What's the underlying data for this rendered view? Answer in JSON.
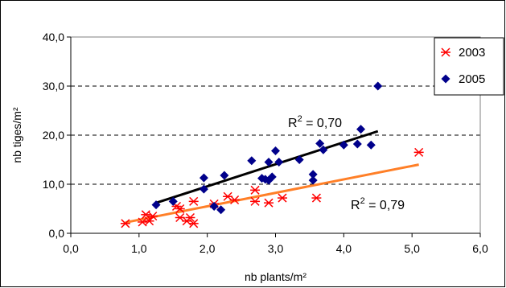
{
  "chart_data": {
    "type": "scatter",
    "xlabel": "nb plants/m²",
    "ylabel": "nb tiges/m²",
    "xlim": [
      0,
      6
    ],
    "ylim": [
      0,
      40
    ],
    "x_ticks": [
      "0,0",
      "1,0",
      "2,0",
      "3,0",
      "4,0",
      "5,0",
      "6,0"
    ],
    "y_ticks": [
      "0,0",
      "10,0",
      "20,0",
      "30,0",
      "40,0"
    ],
    "grid": "horizontal dashed",
    "legend_position": "top-right",
    "series": [
      {
        "name": "2003",
        "marker": "asterisk",
        "color": "#ff0000",
        "points": [
          [
            0.8,
            2.0
          ],
          [
            1.05,
            2.3
          ],
          [
            1.1,
            3.8
          ],
          [
            1.15,
            2.5
          ],
          [
            1.2,
            3.5
          ],
          [
            1.55,
            5.5
          ],
          [
            1.6,
            3.2
          ],
          [
            1.6,
            5.0
          ],
          [
            1.7,
            2.5
          ],
          [
            1.75,
            3.2
          ],
          [
            1.8,
            2.0
          ],
          [
            1.8,
            6.5
          ],
          [
            2.1,
            6.0
          ],
          [
            2.3,
            7.5
          ],
          [
            2.4,
            6.8
          ],
          [
            2.7,
            6.5
          ],
          [
            2.7,
            8.8
          ],
          [
            2.9,
            6.2
          ],
          [
            3.1,
            7.2
          ],
          [
            3.6,
            7.2
          ],
          [
            5.1,
            16.5
          ]
        ],
        "trendline": {
          "color": "#ff7f27",
          "x": [
            0.8,
            5.1
          ],
          "y": [
            2.2,
            14.0
          ]
        }
      },
      {
        "name": "2005",
        "marker": "diamond",
        "color": "#00008b",
        "points": [
          [
            1.25,
            5.8
          ],
          [
            1.5,
            6.5
          ],
          [
            1.95,
            9.0
          ],
          [
            1.95,
            11.3
          ],
          [
            2.1,
            5.5
          ],
          [
            2.2,
            4.8
          ],
          [
            2.25,
            11.8
          ],
          [
            2.65,
            14.8
          ],
          [
            2.8,
            11.2
          ],
          [
            2.85,
            11.0
          ],
          [
            2.9,
            14.5
          ],
          [
            2.9,
            10.8
          ],
          [
            2.95,
            11.5
          ],
          [
            3.0,
            16.8
          ],
          [
            3.05,
            14.5
          ],
          [
            3.35,
            15.0
          ],
          [
            3.55,
            10.8
          ],
          [
            3.55,
            12.0
          ],
          [
            3.65,
            18.3
          ],
          [
            3.7,
            17.0
          ],
          [
            4.0,
            18.0
          ],
          [
            4.2,
            18.2
          ],
          [
            4.25,
            21.2
          ],
          [
            4.4,
            18.0
          ],
          [
            4.5,
            30.0
          ]
        ],
        "trendline": {
          "color": "#000000",
          "x": [
            1.25,
            4.5
          ],
          "y": [
            6.2,
            20.8
          ]
        }
      }
    ],
    "annotations": [
      {
        "text": "R² = 0,70",
        "near": "2005"
      },
      {
        "text": "R² = 0,79",
        "near": "2003"
      }
    ]
  }
}
